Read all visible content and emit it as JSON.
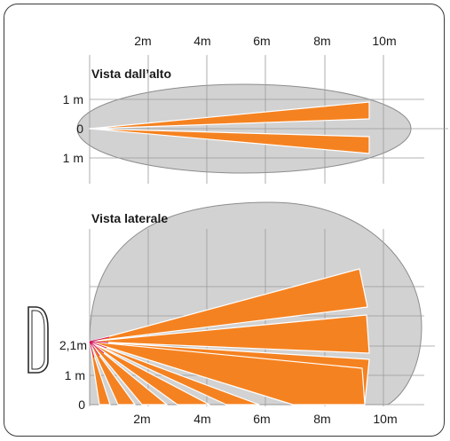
{
  "colors": {
    "beam": "#f58220",
    "beam_stroke": "#ffffff",
    "zone_fill": "#d2d2d2",
    "zone_stroke": "#8c8c8c",
    "grid": "#9a9a9a",
    "axis_text": "#1a1a1a",
    "frame": "#3a3a3a",
    "origin_rays": "#d4145a"
  },
  "top_view": {
    "title": "Vista dall’alto",
    "distance_labels": [
      "2m",
      "4m",
      "6m",
      "8m",
      "10m"
    ],
    "y_labels": [
      "1 m",
      "0",
      "1 m"
    ]
  },
  "side_view": {
    "title": "Vista laterale",
    "distance_labels": [
      "2m",
      "4m",
      "6m",
      "8m",
      "10m"
    ],
    "y_labels": [
      "2,1m",
      "1 m",
      "0"
    ]
  },
  "icons": {
    "sensor": "sensor-device-icon"
  }
}
